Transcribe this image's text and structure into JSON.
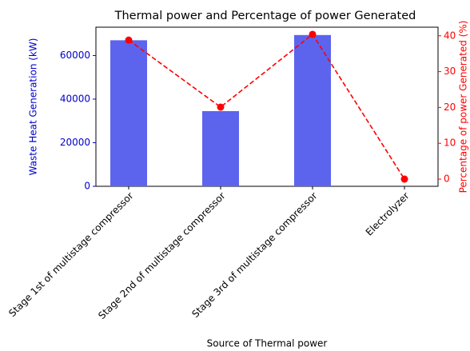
{
  "chart_data": {
    "type": "bar_line",
    "title": "Thermal power and Percentage of power Generated",
    "xlabel": "Source of Thermal power",
    "ylabel": "Waste Heat Generation (kW)",
    "y2label": "Percentage of power Generated (%)",
    "categories": [
      "Stage 1st of multistage compressor",
      "Stage 2nd of multistage compressor",
      "Stage 3rd of multistage compressor",
      "Electrolyzer"
    ],
    "series": [
      {
        "type": "bar",
        "color": "#5c64ee",
        "values": [
          67000,
          34500,
          69400,
          0
        ]
      },
      {
        "type": "line",
        "axis": "y2",
        "color": "#ff0000",
        "values": [
          38.8,
          20.1,
          40.4,
          0
        ]
      }
    ],
    "ylim": [
      0,
      73000
    ],
    "yticks": [
      0,
      20000,
      40000,
      60000
    ],
    "y2lim": [
      -2,
      42.4
    ],
    "y2ticks": [
      0,
      10,
      20,
      30,
      40
    ],
    "ycolor": "#0000cc",
    "y2color": "#ff0000"
  }
}
